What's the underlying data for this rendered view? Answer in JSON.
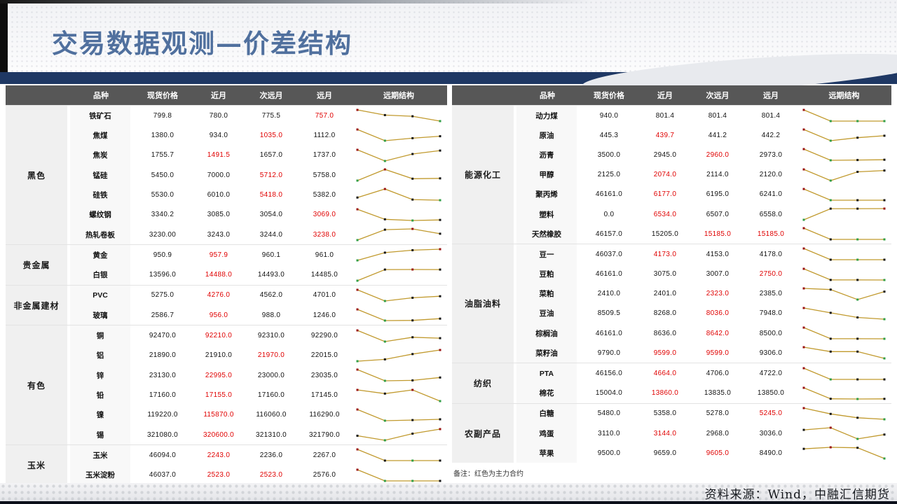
{
  "title": "交易数据观测—价差结构",
  "note": "备注：红色为主力合约",
  "source": "资料来源：Wind，中融汇信期货",
  "columns": [
    "品种",
    "现货价格",
    "近月",
    "次远月",
    "远月",
    "远期结构"
  ],
  "colors": {
    "accent_navy": "#1f3864",
    "title_blue": "#50709e",
    "header_gray": "#575757",
    "red_main_contract": "#e00000",
    "spark_line": "#c19a2e",
    "spark_max": "#991111",
    "spark_min": "#2f9e44",
    "spark_point": "#161616"
  },
  "tables": [
    {
      "groups": [
        {
          "name": "黑色",
          "rows": [
            {
              "name": "铁矿石",
              "values": [
                "799.8",
                "780.0",
                "775.5",
                "757.0"
              ],
              "red": [
                3
              ]
            },
            {
              "name": "焦煤",
              "values": [
                "1380.0",
                "934.0",
                "1035.0",
                "1112.0"
              ],
              "red": [
                2
              ]
            },
            {
              "name": "焦炭",
              "values": [
                "1755.7",
                "1491.5",
                "1657.0",
                "1737.0"
              ],
              "red": [
                1
              ]
            },
            {
              "name": "锰硅",
              "values": [
                "5450.0",
                "7000.0",
                "5712.0",
                "5758.0"
              ],
              "red": [
                2
              ]
            },
            {
              "name": "硅铁",
              "values": [
                "5530.0",
                "6010.0",
                "5418.0",
                "5382.0"
              ],
              "red": [
                2
              ]
            },
            {
              "name": "螺纹钢",
              "values": [
                "3340.2",
                "3085.0",
                "3054.0",
                "3069.0"
              ],
              "red": [
                3
              ]
            },
            {
              "name": "热轧卷板",
              "values": [
                "3230.00",
                "3243.0",
                "3244.0",
                "3238.0"
              ],
              "red": [
                3
              ]
            }
          ]
        },
        {
          "name": "贵金属",
          "rows": [
            {
              "name": "黄金",
              "values": [
                "950.9",
                "957.9",
                "960.1",
                "961.0"
              ],
              "red": [
                1
              ]
            },
            {
              "name": "白银",
              "values": [
                "13596.0",
                "14488.0",
                "14493.0",
                "14485.0"
              ],
              "red": [
                1
              ]
            }
          ]
        },
        {
          "name": "非金属建材",
          "rows": [
            {
              "name": "PVC",
              "values": [
                "5275.0",
                "4276.0",
                "4562.0",
                "4701.0"
              ],
              "red": [
                1
              ]
            },
            {
              "name": "玻璃",
              "values": [
                "2586.7",
                "956.0",
                "988.0",
                "1246.0"
              ],
              "red": [
                1
              ]
            }
          ]
        },
        {
          "name": "有色",
          "rows": [
            {
              "name": "铜",
              "values": [
                "92470.0",
                "92210.0",
                "92310.0",
                "92290.0"
              ],
              "red": [
                1
              ]
            },
            {
              "name": "铝",
              "values": [
                "21890.0",
                "21910.0",
                "21970.0",
                "22015.0"
              ],
              "red": [
                2
              ]
            },
            {
              "name": "锌",
              "values": [
                "23130.0",
                "22995.0",
                "23000.0",
                "23035.0"
              ],
              "red": [
                1
              ]
            },
            {
              "name": "铅",
              "values": [
                "17160.0",
                "17155.0",
                "17160.0",
                "17145.0"
              ],
              "red": [
                1
              ]
            },
            {
              "name": "镍",
              "values": [
                "119220.0",
                "115870.0",
                "116060.0",
                "116290.0"
              ],
              "red": [
                1
              ]
            },
            {
              "name": "锡",
              "values": [
                "321080.0",
                "320600.0",
                "321310.0",
                "321790.0"
              ],
              "red": [
                1
              ]
            }
          ]
        },
        {
          "name": "玉米",
          "rows": [
            {
              "name": "玉米",
              "values": [
                "46094.0",
                "2243.0",
                "2236.0",
                "2267.0"
              ],
              "red": [
                1
              ]
            },
            {
              "name": "玉米淀粉",
              "values": [
                "46037.0",
                "2523.0",
                "2523.0",
                "2576.0"
              ],
              "red": [
                1,
                2
              ]
            }
          ]
        }
      ]
    },
    {
      "groups": [
        {
          "name": "能源化工",
          "rows": [
            {
              "name": "动力煤",
              "values": [
                "940.0",
                "801.4",
                "801.4",
                "801.4"
              ],
              "red": []
            },
            {
              "name": "原油",
              "values": [
                "445.3",
                "439.7",
                "441.2",
                "442.2"
              ],
              "red": [
                1
              ]
            },
            {
              "name": "沥青",
              "values": [
                "3500.0",
                "2945.0",
                "2960.0",
                "2973.0"
              ],
              "red": [
                2
              ]
            },
            {
              "name": "甲醇",
              "values": [
                "2125.0",
                "2074.0",
                "2114.0",
                "2120.0"
              ],
              "red": [
                1
              ]
            },
            {
              "name": "聚丙烯",
              "values": [
                "46161.0",
                "6177.0",
                "6195.0",
                "6241.0"
              ],
              "red": [
                1
              ]
            },
            {
              "name": "塑料",
              "values": [
                "0.0",
                "6534.0",
                "6507.0",
                "6558.0"
              ],
              "red": [
                1
              ]
            },
            {
              "name": "天然橡胶",
              "values": [
                "46157.0",
                "15205.0",
                "15185.0",
                "15185.0"
              ],
              "red": [
                2,
                3
              ]
            }
          ]
        },
        {
          "name": "油脂油料",
          "rows": [
            {
              "name": "豆一",
              "values": [
                "46037.0",
                "4173.0",
                "4153.0",
                "4178.0"
              ],
              "red": [
                1
              ]
            },
            {
              "name": "豆粕",
              "values": [
                "46161.0",
                "3075.0",
                "3007.0",
                "2750.0"
              ],
              "red": [
                3
              ]
            },
            {
              "name": "菜粕",
              "values": [
                "2410.0",
                "2401.0",
                "2323.0",
                "2385.0"
              ],
              "red": [
                2
              ]
            },
            {
              "name": "豆油",
              "values": [
                "8509.5",
                "8268.0",
                "8036.0",
                "7948.0"
              ],
              "red": [
                2
              ]
            },
            {
              "name": "棕榈油",
              "values": [
                "46161.0",
                "8636.0",
                "8642.0",
                "8500.0"
              ],
              "red": [
                2
              ]
            },
            {
              "name": "菜籽油",
              "values": [
                "9790.0",
                "9599.0",
                "9599.0",
                "9306.0"
              ],
              "red": [
                1,
                2
              ]
            }
          ]
        },
        {
          "name": "纺织",
          "rows": [
            {
              "name": "PTA",
              "values": [
                "46156.0",
                "4664.0",
                "4706.0",
                "4722.0"
              ],
              "red": [
                1
              ]
            },
            {
              "name": "棉花",
              "values": [
                "15004.0",
                "13860.0",
                "13835.0",
                "13850.0"
              ],
              "red": [
                1
              ]
            }
          ]
        },
        {
          "name": "农副产品",
          "rows": [
            {
              "name": "白糖",
              "values": [
                "5480.0",
                "5358.0",
                "5278.0",
                "5245.0"
              ],
              "red": [
                3
              ]
            },
            {
              "name": "鸡蛋",
              "values": [
                "3110.0",
                "3144.0",
                "2968.0",
                "3036.0"
              ],
              "red": [
                1
              ]
            },
            {
              "name": "苹果",
              "values": [
                "9500.0",
                "9659.0",
                "9605.0",
                "8490.0"
              ],
              "red": [
                2
              ]
            }
          ]
        }
      ]
    }
  ]
}
